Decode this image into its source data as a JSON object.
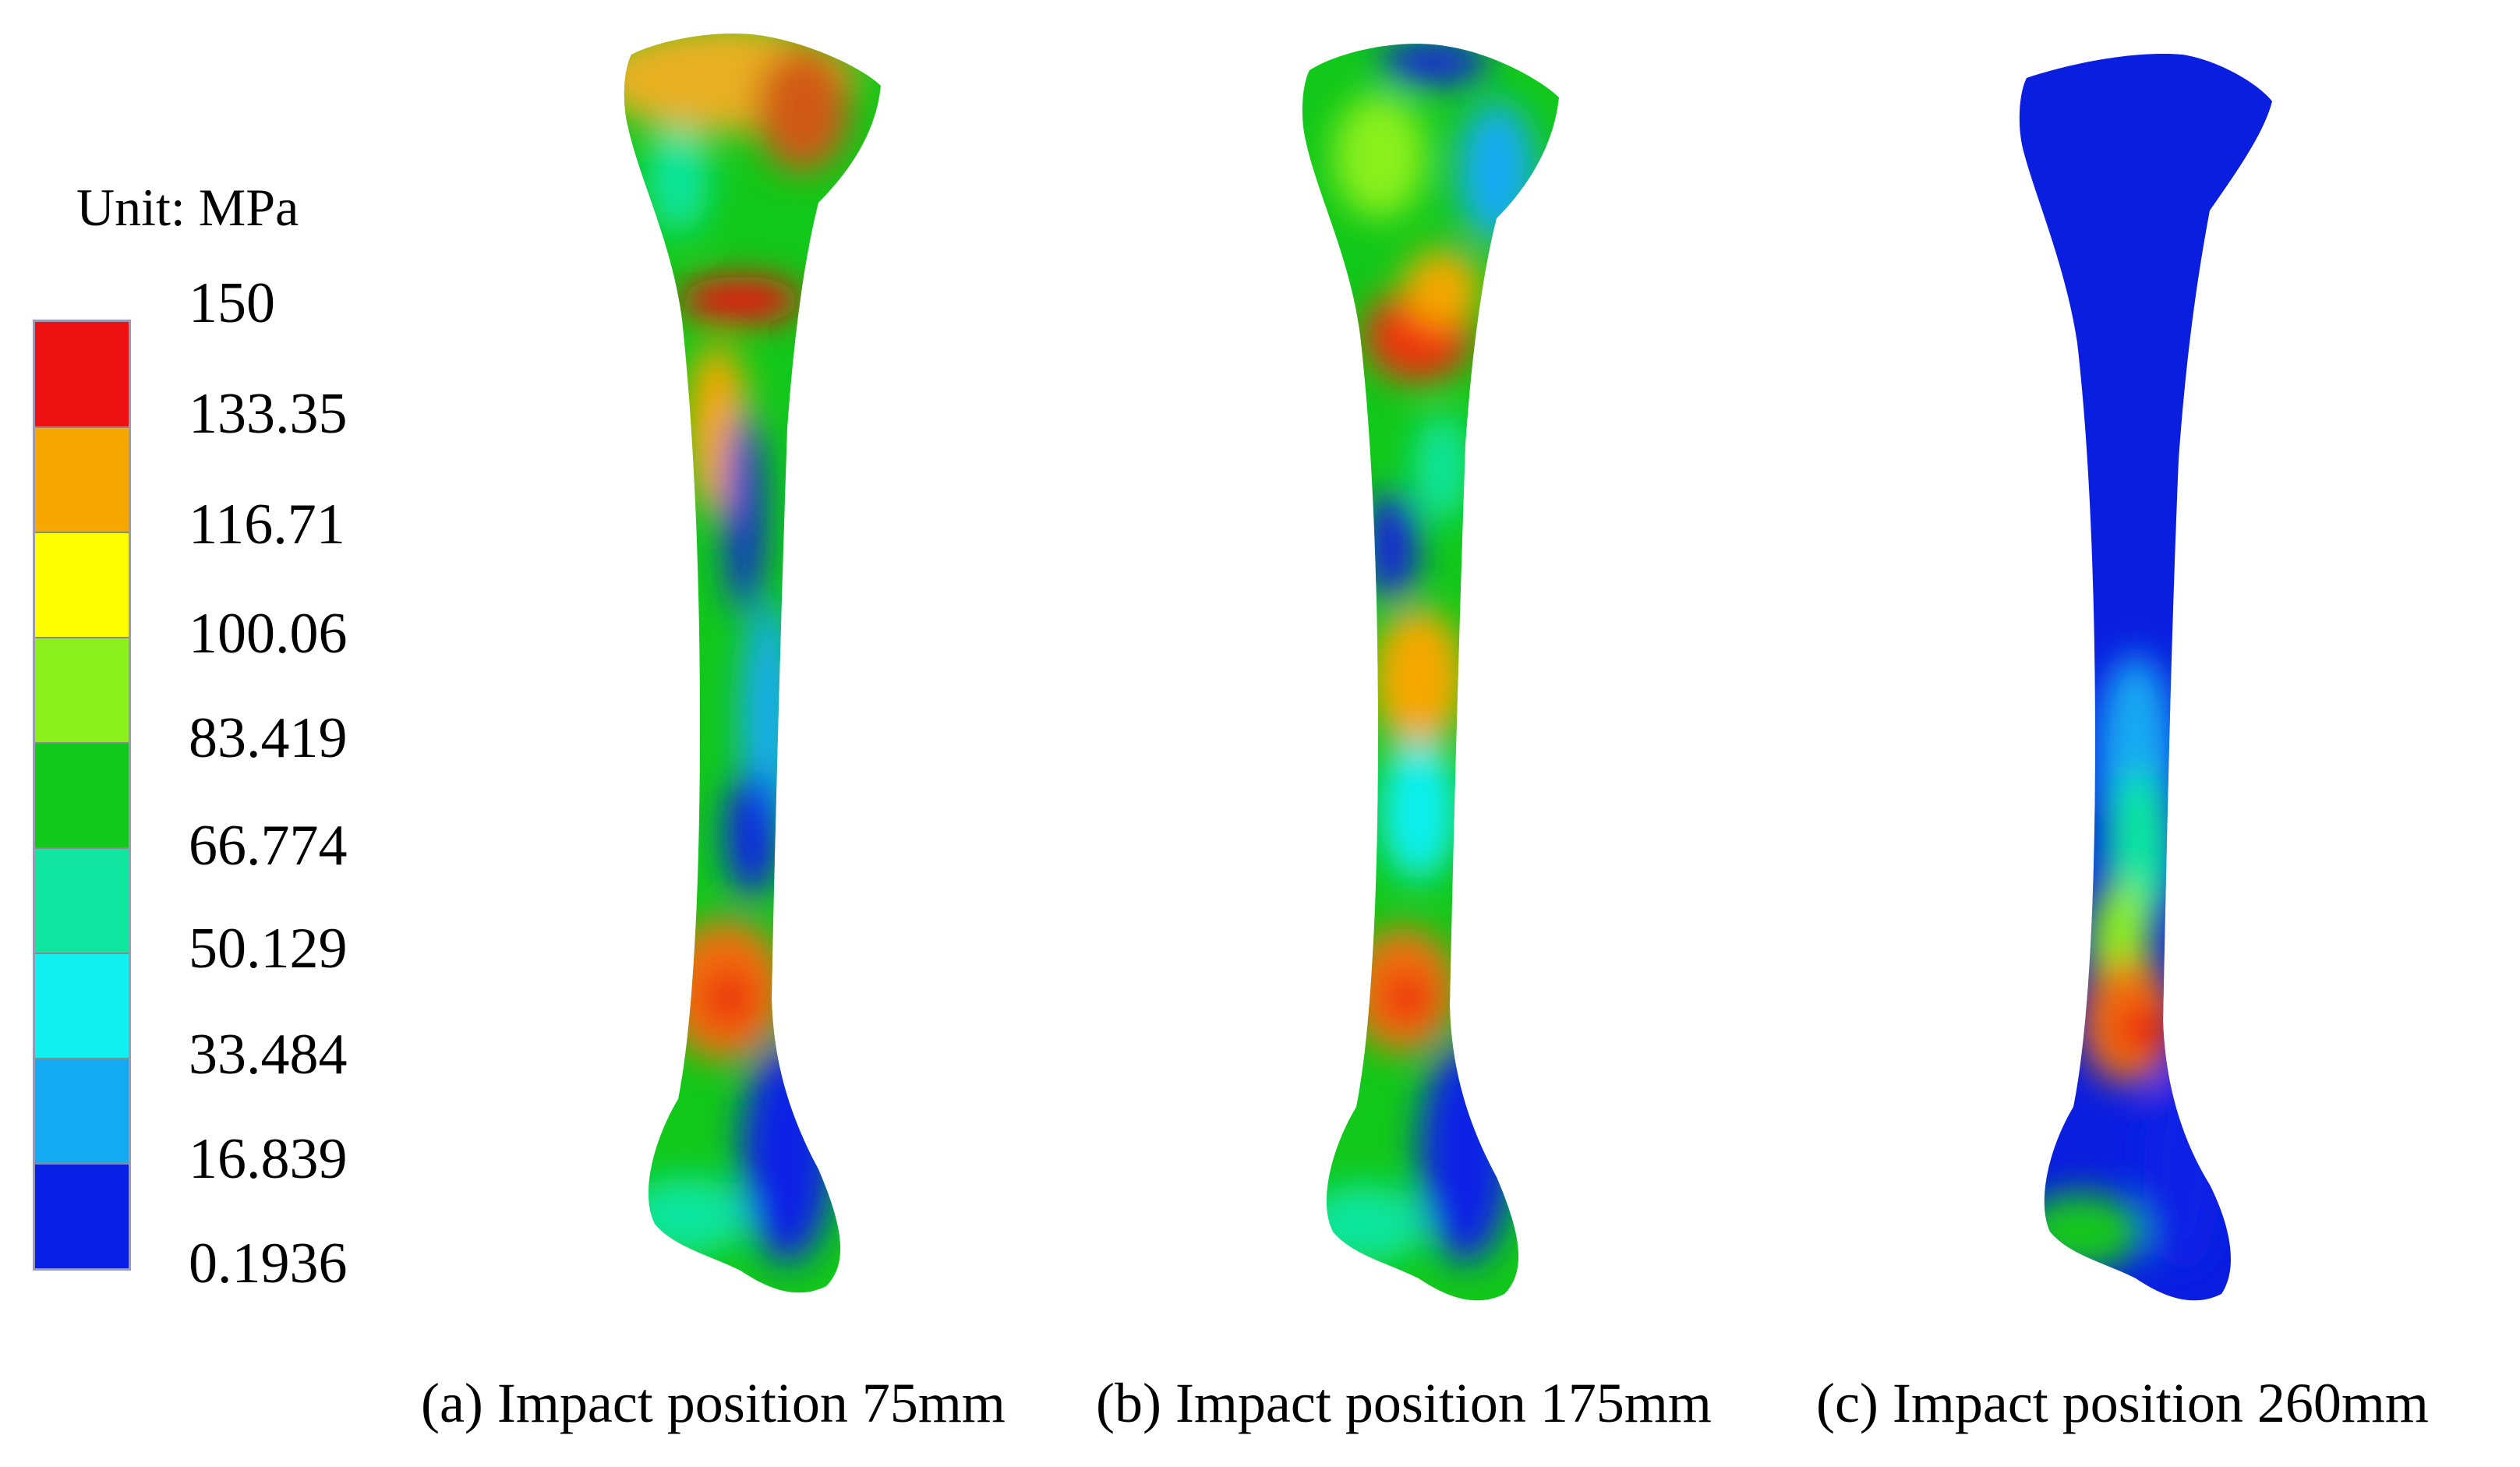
{
  "legend": {
    "unit": "Unit: MPa",
    "ticks": [
      "150",
      "133.35",
      "116.71",
      "100.06",
      "83.419",
      "66.774",
      "50.129",
      "33.484",
      "16.839",
      "0.1936"
    ],
    "band_colors": [
      "#ee1111",
      "#f6a800",
      "#ffff00",
      "#8cf01c",
      "#12c81a",
      "#10e6a0",
      "#10f0f0",
      "#14aaf2",
      "#0820e6"
    ]
  },
  "panels": [
    {
      "caption": "(a) Impact position 75mm"
    },
    {
      "caption": "(b) Impact position 175mm"
    },
    {
      "caption": "(c) Impact position 260mm"
    }
  ]
}
